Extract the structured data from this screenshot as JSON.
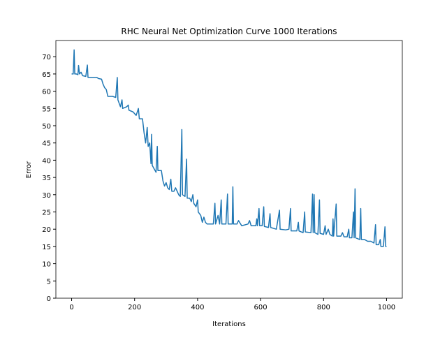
{
  "chart_data": {
    "type": "line",
    "title": "RHC Neural Net Optimization Curve 1000 Iterations",
    "x_label": "Iterations",
    "y_label": "Error",
    "xlim": [
      -50,
      1050
    ],
    "ylim": [
      0,
      74.7
    ],
    "xticks": [
      0,
      200,
      400,
      600,
      800,
      1000
    ],
    "yticks": [
      0,
      5,
      10,
      15,
      20,
      25,
      30,
      35,
      40,
      45,
      50,
      55,
      60,
      65,
      70
    ],
    "x": [
      0,
      5,
      8,
      10,
      15,
      20,
      22,
      25,
      30,
      35,
      45,
      50,
      52,
      60,
      80,
      85,
      95,
      100,
      105,
      110,
      115,
      130,
      140,
      145,
      147,
      155,
      160,
      162,
      175,
      180,
      182,
      195,
      205,
      212,
      215,
      225,
      230,
      235,
      240,
      243,
      248,
      252,
      254,
      256,
      262,
      268,
      272,
      274,
      285,
      290,
      295,
      300,
      305,
      310,
      315,
      318,
      325,
      330,
      335,
      340,
      345,
      350,
      352,
      360,
      365,
      367,
      375,
      380,
      385,
      388,
      395,
      400,
      402,
      410,
      415,
      420,
      425,
      430,
      450,
      455,
      457,
      465,
      470,
      475,
      477,
      490,
      495,
      497,
      510,
      512,
      514,
      525,
      530,
      540,
      560,
      565,
      570,
      585,
      588,
      590,
      595,
      597,
      605,
      610,
      612,
      625,
      630,
      632,
      650,
      660,
      662,
      680,
      690,
      695,
      697,
      715,
      720,
      722,
      735,
      740,
      742,
      760,
      765,
      767,
      770,
      772,
      782,
      787,
      789,
      800,
      805,
      808,
      815,
      820,
      828,
      830,
      832,
      840,
      842,
      855,
      860,
      865,
      875,
      880,
      882,
      890,
      895,
      897,
      900,
      902,
      915,
      918,
      920,
      930,
      940,
      950,
      960,
      965,
      967,
      975,
      980,
      982,
      990,
      995,
      997,
      1000
    ],
    "series": [
      {
        "name": "error",
        "color": "#1f77b4",
        "values": [
          65,
          65,
          72,
          65,
          65,
          64.8,
          67.5,
          65,
          65.5,
          64.5,
          64.3,
          67.6,
          64,
          64,
          64,
          63.7,
          63.5,
          62,
          61,
          60.5,
          58.5,
          58.5,
          58.2,
          64,
          57.5,
          55.5,
          57.5,
          55,
          55.5,
          56,
          54.5,
          54,
          53,
          55,
          52,
          52,
          48,
          45,
          49.5,
          44,
          45,
          39,
          47.5,
          38.5,
          37.5,
          36.5,
          44,
          37,
          37,
          34,
          32.5,
          33.5,
          32,
          31.5,
          34.5,
          31,
          31,
          32,
          31,
          30,
          29.5,
          48.9,
          30,
          29.5,
          40.3,
          29,
          29,
          28,
          30,
          27.5,
          26.5,
          28.5,
          25,
          24,
          22,
          23.5,
          22,
          21.5,
          21.5,
          27.5,
          21.5,
          24,
          21.5,
          28.5,
          21.5,
          21.5,
          30.2,
          21.5,
          21.5,
          32.3,
          21.5,
          21.5,
          22.5,
          21,
          21.5,
          22.5,
          21,
          21,
          23,
          21,
          26,
          21,
          21,
          26.5,
          20.8,
          20.5,
          24.5,
          20.5,
          20,
          25.5,
          20,
          19.8,
          20,
          26,
          19.5,
          19.5,
          22,
          19.5,
          19,
          25,
          19.2,
          19,
          30.2,
          19,
          30,
          19,
          18.5,
          28.5,
          18.8,
          18.5,
          21,
          18.5,
          20,
          18.5,
          18,
          23,
          18,
          27.3,
          18,
          18,
          19,
          17.8,
          17.8,
          20,
          17.5,
          17.5,
          25,
          17.5,
          31.7,
          17.5,
          17,
          26,
          17,
          17,
          16.5,
          16.5,
          16,
          21.3,
          15.5,
          15.5,
          17,
          15,
          15,
          20.7,
          15,
          15
        ]
      }
    ]
  }
}
